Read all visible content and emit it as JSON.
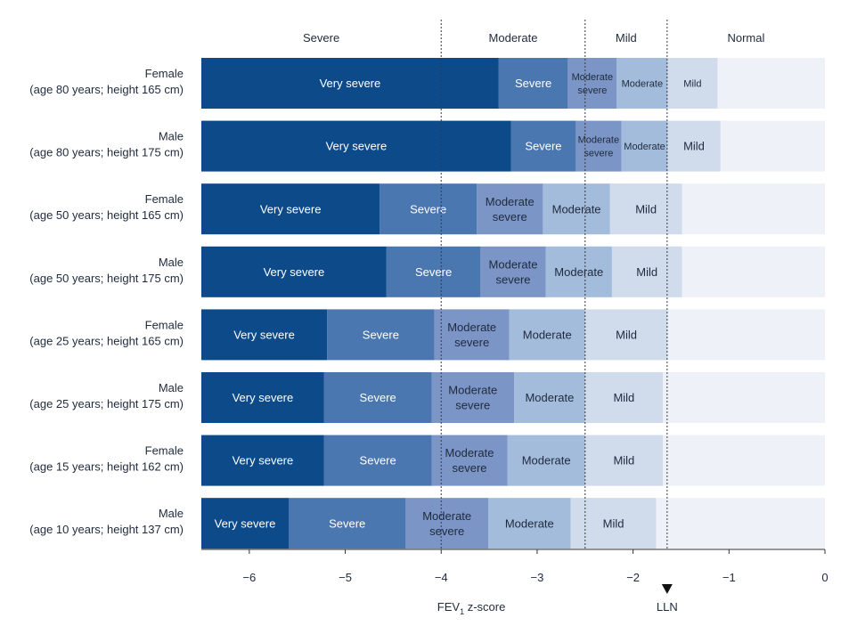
{
  "chart_data": {
    "type": "bar",
    "orientation": "horizontal-stacked",
    "xlabel_main": "FEV",
    "xlabel_sub": "1",
    "xlabel_rest": " z-score",
    "lln_label": "LLN",
    "xlim": [
      -6.5,
      0
    ],
    "xticks": [
      -6,
      -5,
      -4,
      -3,
      -2,
      -1,
      0
    ],
    "xtick_labels": [
      "−6",
      "−5",
      "−4",
      "−3",
      "−2",
      "−1",
      "0"
    ],
    "zones": [
      {
        "label": "Severe",
        "from": -6.5,
        "to": -4
      },
      {
        "label": "Moderate",
        "from": -4,
        "to": -2.5
      },
      {
        "label": "Mild",
        "from": -2.5,
        "to": -1.645
      },
      {
        "label": "Normal",
        "from": -1.645,
        "to": 0
      }
    ],
    "reference_lines": [
      -4,
      -2.5,
      -1.645
    ],
    "lln_value": -1.645,
    "categories": [
      "Very severe",
      "Severe",
      "Moderate severe",
      "Moderate",
      "Mild"
    ],
    "colors": {
      "Very severe": "#0d4a8a",
      "Severe": "#4a77b0",
      "Moderate severe": "#7b95c6",
      "Moderate": "#a3bcdc",
      "Mild": "#d0dcec",
      "background": "#eef2f8",
      "text_dark": "#1f2a3c",
      "text_light": "#ffffff"
    },
    "rows": [
      {
        "label1": "Female",
        "label2": "(age 80 years; height 165 cm)",
        "segments": [
          {
            "cat": "Very severe",
            "from": -6.5,
            "to": -3.4,
            "text": [
              "Very severe"
            ]
          },
          {
            "cat": "Severe",
            "from": -3.4,
            "to": -2.68,
            "text": [
              "Severe"
            ]
          },
          {
            "cat": "Moderate severe",
            "from": -2.68,
            "to": -2.17,
            "text": [
              "Moderate",
              "severe"
            ]
          },
          {
            "cat": "Moderate",
            "from": -2.17,
            "to": -1.64,
            "text": [
              "Moderate"
            ]
          },
          {
            "cat": "Mild",
            "from": -1.64,
            "to": -1.12,
            "text": [
              "Mild"
            ]
          }
        ]
      },
      {
        "label1": "Male",
        "label2": "(age 80 years; height 175 cm)",
        "segments": [
          {
            "cat": "Very severe",
            "from": -6.5,
            "to": -3.27,
            "text": [
              "Very severe"
            ]
          },
          {
            "cat": "Severe",
            "from": -3.27,
            "to": -2.6,
            "text": [
              "Severe"
            ]
          },
          {
            "cat": "Moderate severe",
            "from": -2.6,
            "to": -2.12,
            "text": [
              "Moderate",
              "severe"
            ]
          },
          {
            "cat": "Moderate",
            "from": -2.12,
            "to": -1.64,
            "text": [
              "Moderate"
            ]
          },
          {
            "cat": "Mild",
            "from": -1.64,
            "to": -1.09,
            "text": [
              "Mild"
            ]
          }
        ]
      },
      {
        "label1": "Female",
        "label2": "(age 50 years; height 165 cm)",
        "segments": [
          {
            "cat": "Very severe",
            "from": -6.5,
            "to": -4.64,
            "text": [
              "Very severe"
            ]
          },
          {
            "cat": "Severe",
            "from": -4.64,
            "to": -3.63,
            "text": [
              "Severe"
            ]
          },
          {
            "cat": "Moderate severe",
            "from": -3.63,
            "to": -2.94,
            "text": [
              "Moderate",
              "severe"
            ]
          },
          {
            "cat": "Moderate",
            "from": -2.94,
            "to": -2.24,
            "text": [
              "Moderate"
            ]
          },
          {
            "cat": "Mild",
            "from": -2.24,
            "to": -1.49,
            "text": [
              "Mild"
            ]
          }
        ]
      },
      {
        "label1": "Male",
        "label2": "(age 50 years; height 175 cm)",
        "segments": [
          {
            "cat": "Very severe",
            "from": -6.5,
            "to": -4.57,
            "text": [
              "Very severe"
            ]
          },
          {
            "cat": "Severe",
            "from": -4.57,
            "to": -3.59,
            "text": [
              "Severe"
            ]
          },
          {
            "cat": "Moderate severe",
            "from": -3.59,
            "to": -2.91,
            "text": [
              "Moderate",
              "severe"
            ]
          },
          {
            "cat": "Moderate",
            "from": -2.91,
            "to": -2.22,
            "text": [
              "Moderate"
            ]
          },
          {
            "cat": "Mild",
            "from": -2.22,
            "to": -1.49,
            "text": [
              "Mild"
            ]
          }
        ]
      },
      {
        "label1": "Female",
        "label2": "(age 25 years; height 165 cm)",
        "segments": [
          {
            "cat": "Very severe",
            "from": -6.5,
            "to": -5.19,
            "text": [
              "Very severe"
            ]
          },
          {
            "cat": "Severe",
            "from": -5.19,
            "to": -4.07,
            "text": [
              "Severe"
            ]
          },
          {
            "cat": "Moderate severe",
            "from": -4.07,
            "to": -3.29,
            "text": [
              "Moderate",
              "severe"
            ]
          },
          {
            "cat": "Moderate",
            "from": -3.29,
            "to": -2.5,
            "text": [
              "Moderate"
            ]
          },
          {
            "cat": "Mild",
            "from": -2.5,
            "to": -1.64,
            "text": [
              "Mild"
            ]
          }
        ]
      },
      {
        "label1": "Male",
        "label2": "(age 25 years; height 175 cm)",
        "segments": [
          {
            "cat": "Very severe",
            "from": -6.5,
            "to": -5.22,
            "text": [
              "Very severe"
            ]
          },
          {
            "cat": "Severe",
            "from": -5.22,
            "to": -4.1,
            "text": [
              "Severe"
            ]
          },
          {
            "cat": "Moderate severe",
            "from": -4.1,
            "to": -3.24,
            "text": [
              "Moderate",
              "severe"
            ]
          },
          {
            "cat": "Moderate",
            "from": -3.24,
            "to": -2.5,
            "text": [
              "Moderate"
            ]
          },
          {
            "cat": "Mild",
            "from": -2.5,
            "to": -1.69,
            "text": [
              "Mild"
            ]
          }
        ]
      },
      {
        "label1": "Female",
        "label2": "(age 15 years; height 162 cm)",
        "segments": [
          {
            "cat": "Very severe",
            "from": -6.5,
            "to": -5.22,
            "text": [
              "Very severe"
            ]
          },
          {
            "cat": "Severe",
            "from": -5.22,
            "to": -4.1,
            "text": [
              "Severe"
            ]
          },
          {
            "cat": "Moderate severe",
            "from": -4.1,
            "to": -3.31,
            "text": [
              "Moderate",
              "severe"
            ]
          },
          {
            "cat": "Moderate",
            "from": -3.31,
            "to": -2.5,
            "text": [
              "Moderate"
            ]
          },
          {
            "cat": "Mild",
            "from": -2.5,
            "to": -1.69,
            "text": [
              "Mild"
            ]
          }
        ]
      },
      {
        "label1": "Male",
        "label2": "(age 10 years; height 137 cm)",
        "segments": [
          {
            "cat": "Very severe",
            "from": -6.5,
            "to": -5.59,
            "text": [
              "Very severe"
            ]
          },
          {
            "cat": "Severe",
            "from": -5.59,
            "to": -4.37,
            "text": [
              "Severe"
            ]
          },
          {
            "cat": "Moderate severe",
            "from": -4.37,
            "to": -3.51,
            "text": [
              "Moderate",
              "severe"
            ]
          },
          {
            "cat": "Moderate",
            "from": -3.51,
            "to": -2.65,
            "text": [
              "Moderate"
            ]
          },
          {
            "cat": "Mild",
            "from": -2.65,
            "to": -1.76,
            "text": [
              "Mild"
            ]
          }
        ]
      }
    ]
  }
}
